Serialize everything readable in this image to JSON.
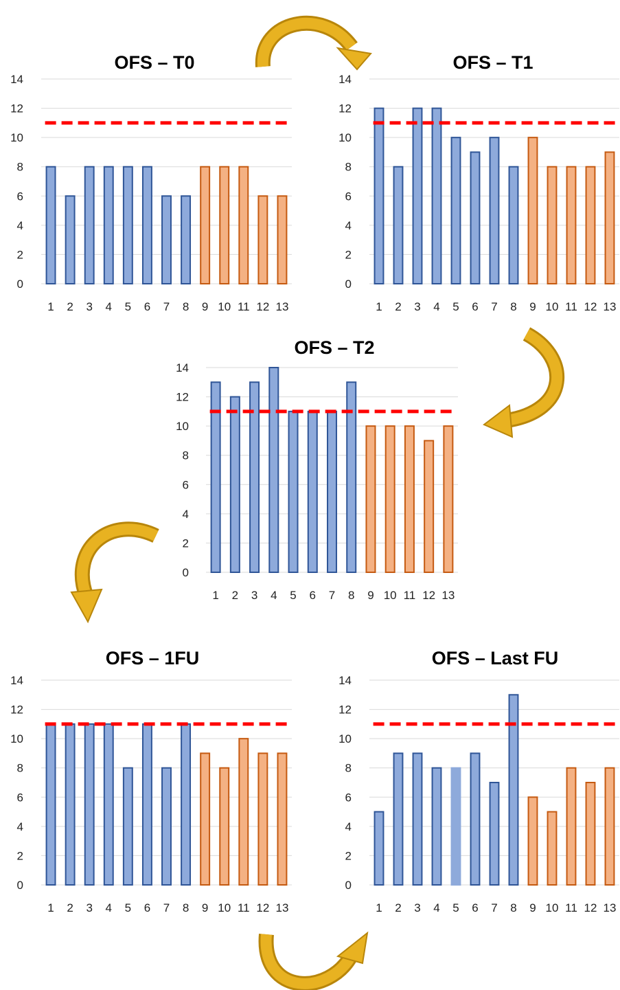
{
  "colors": {
    "blue_fill": "#8eaadb",
    "blue_stroke": "#2f5597",
    "orange_fill": "#f4b183",
    "orange_stroke": "#c55a11",
    "threshold": "#ff0000",
    "arrow": "#d6a21a",
    "grid": "#d9d9d9"
  },
  "chart_data": [
    {
      "type": "bar",
      "title": "OFS – T0",
      "categories": [
        "1",
        "2",
        "3",
        "4",
        "5",
        "6",
        "7",
        "8",
        "9",
        "10",
        "11",
        "12",
        "13"
      ],
      "values": [
        8,
        6,
        8,
        8,
        8,
        8,
        6,
        6,
        8,
        8,
        8,
        6,
        6
      ],
      "groups": [
        "blue",
        "blue",
        "blue",
        "blue",
        "blue",
        "blue",
        "blue",
        "blue",
        "orange",
        "orange",
        "orange",
        "orange",
        "orange"
      ],
      "ylim": [
        0,
        14
      ],
      "yticks": [
        "0",
        "2",
        "4",
        "6",
        "8",
        "10",
        "12",
        "14"
      ],
      "threshold": 11,
      "grid": true
    },
    {
      "type": "bar",
      "title": "OFS – T1",
      "categories": [
        "1",
        "2",
        "3",
        "4",
        "5",
        "6",
        "7",
        "8",
        "9",
        "10",
        "11",
        "12",
        "13"
      ],
      "values": [
        12,
        8,
        12,
        12,
        10,
        9,
        10,
        8,
        10,
        8,
        8,
        8,
        9
      ],
      "groups": [
        "blue",
        "blue",
        "blue",
        "blue",
        "blue",
        "blue",
        "blue",
        "blue",
        "orange",
        "orange",
        "orange",
        "orange",
        "orange"
      ],
      "ylim": [
        0,
        14
      ],
      "yticks": [
        "0",
        "2",
        "4",
        "6",
        "8",
        "10",
        "12",
        "14"
      ],
      "threshold": 11,
      "grid": true
    },
    {
      "type": "bar",
      "title": "OFS – T2",
      "categories": [
        "1",
        "2",
        "3",
        "4",
        "5",
        "6",
        "7",
        "8",
        "9",
        "10",
        "11",
        "12",
        "13"
      ],
      "values": [
        13,
        12,
        13,
        14,
        11,
        11,
        11,
        13,
        10,
        10,
        10,
        9,
        10
      ],
      "groups": [
        "blue",
        "blue",
        "blue",
        "blue",
        "blue",
        "blue",
        "blue",
        "blue",
        "orange",
        "orange",
        "orange",
        "orange",
        "orange"
      ],
      "ylim": [
        0,
        14
      ],
      "yticks": [
        "0",
        "2",
        "4",
        "6",
        "8",
        "10",
        "12",
        "14"
      ],
      "threshold": 11,
      "grid": true
    },
    {
      "type": "bar",
      "title": "OFS – 1FU",
      "categories": [
        "1",
        "2",
        "3",
        "4",
        "5",
        "6",
        "7",
        "8",
        "9",
        "10",
        "11",
        "12",
        "13"
      ],
      "values": [
        11,
        11,
        11,
        11,
        8,
        11,
        8,
        11,
        9,
        8,
        10,
        9,
        9
      ],
      "groups": [
        "blue",
        "blue",
        "blue",
        "blue",
        "blue",
        "blue",
        "blue",
        "blue",
        "orange",
        "orange",
        "orange",
        "orange",
        "orange"
      ],
      "ylim": [
        0,
        14
      ],
      "yticks": [
        "0",
        "2",
        "4",
        "6",
        "8",
        "10",
        "12",
        "14"
      ],
      "threshold": 11,
      "grid": true
    },
    {
      "type": "bar",
      "title": "OFS – Last FU",
      "categories": [
        "1",
        "2",
        "3",
        "4",
        "5",
        "6",
        "7",
        "8",
        "9",
        "10",
        "11",
        "12",
        "13"
      ],
      "values": [
        5,
        9,
        9,
        8,
        8,
        9,
        7,
        13,
        6,
        5,
        8,
        7,
        8
      ],
      "groups": [
        "blue",
        "blue",
        "blue",
        "blue",
        "light",
        "blue",
        "blue",
        "blue",
        "orange",
        "orange",
        "orange",
        "orange",
        "orange"
      ],
      "ylim": [
        0,
        14
      ],
      "yticks": [
        "0",
        "2",
        "4",
        "6",
        "8",
        "10",
        "12",
        "14"
      ],
      "threshold": 11,
      "grid": true
    }
  ]
}
